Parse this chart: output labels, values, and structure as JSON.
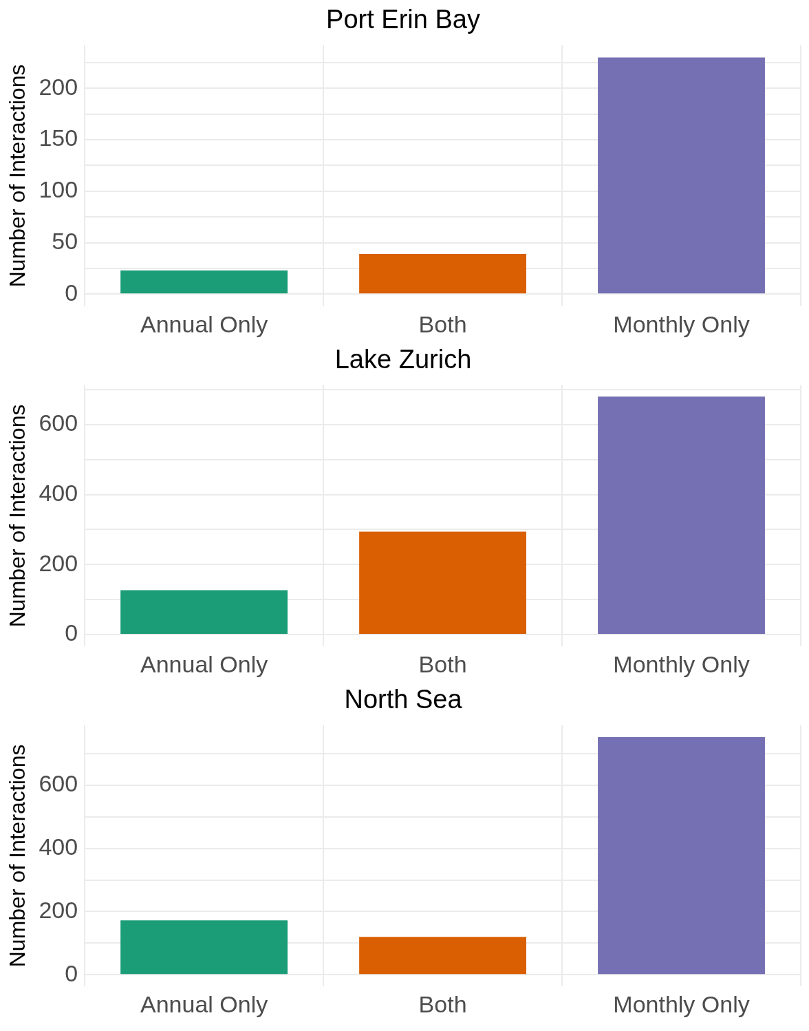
{
  "chart_data": [
    {
      "type": "bar",
      "title": "Port Erin Bay",
      "ylabel": "Number of Interactions",
      "categories": [
        "Annual Only",
        "Both",
        "Monthly Only"
      ],
      "values": [
        23,
        39,
        230
      ],
      "colors": [
        "#1b9e77",
        "#d95f02",
        "#7570b3"
      ],
      "ylim": [
        -12,
        242
      ],
      "yticks": [
        0,
        {
          "value": 25,
          "label": null
        },
        50,
        {
          "value": 75,
          "label": null
        },
        100,
        {
          "value": 125,
          "label": null
        },
        150,
        {
          "value": 175,
          "label": null
        },
        200,
        {
          "value": 225,
          "label": null
        }
      ],
      "grid": true
    },
    {
      "type": "bar",
      "title": "Lake Zurich",
      "ylabel": "Number of Interactions",
      "categories": [
        "Annual Only",
        "Both",
        "Monthly Only"
      ],
      "values": [
        127,
        294,
        680
      ],
      "colors": [
        "#1b9e77",
        "#d95f02",
        "#7570b3"
      ],
      "ylim": [
        -34,
        713
      ],
      "yticks": [
        0,
        {
          "value": 100,
          "label": null
        },
        200,
        {
          "value": 300,
          "label": null
        },
        400,
        {
          "value": 500,
          "label": null
        },
        600,
        {
          "value": 700,
          "label": null
        }
      ],
      "grid": true
    },
    {
      "type": "bar",
      "title": "North Sea",
      "ylabel": "Number of Interactions",
      "categories": [
        "Annual Only",
        "Both",
        "Monthly Only"
      ],
      "values": [
        172,
        120,
        752
      ],
      "colors": [
        "#1b9e77",
        "#d95f02",
        "#7570b3"
      ],
      "ylim": [
        -37,
        790
      ],
      "yticks": [
        0,
        {
          "value": 100,
          "label": null
        },
        200,
        {
          "value": 300,
          "label": null
        },
        400,
        {
          "value": 500,
          "label": null
        },
        600,
        {
          "value": 700,
          "label": null
        }
      ],
      "grid": true
    }
  ]
}
